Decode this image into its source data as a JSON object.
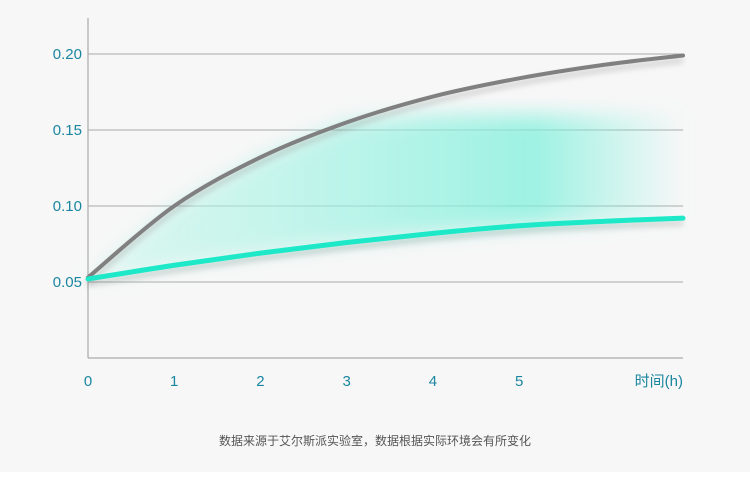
{
  "chart_data": {
    "type": "line",
    "title": "",
    "xlabel": "时间(h)",
    "ylabel": "",
    "x_ticks": [
      "0",
      "1",
      "2",
      "3",
      "4",
      "5"
    ],
    "y_ticks": [
      "0.05",
      "0.10",
      "0.15",
      "0.20"
    ],
    "xlim": [
      0,
      6.9
    ],
    "ylim": [
      0,
      0.22
    ],
    "grid": "horizontal",
    "x": [
      0,
      1,
      2,
      3,
      4,
      5,
      6,
      6.9
    ],
    "series": [
      {
        "color": "#808080",
        "values": [
          0.053,
          0.1,
          0.132,
          0.155,
          0.172,
          0.184,
          0.193,
          0.199
        ]
      },
      {
        "color": "#1de9c8",
        "values": [
          0.052,
          0.061,
          0.069,
          0.076,
          0.082,
          0.087,
          0.09,
          0.092
        ]
      }
    ],
    "fill_between_color": "#7ff0dc"
  },
  "caption": "数据来源于艾尔斯派实验室，数据根据实际环境会有所变化"
}
